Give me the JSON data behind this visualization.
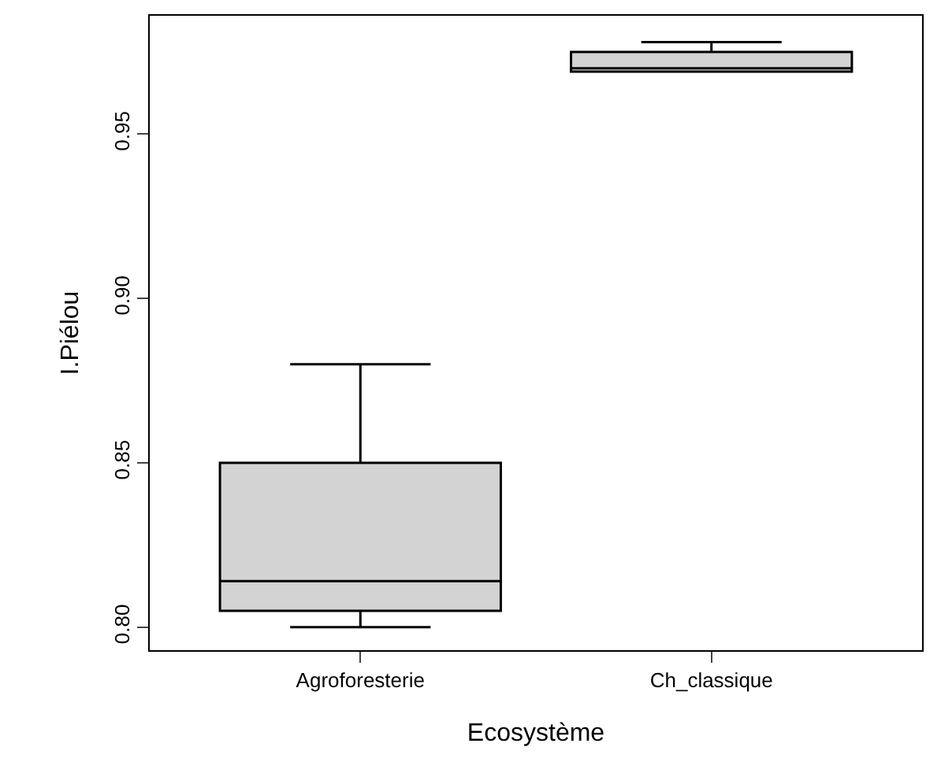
{
  "chart_data": {
    "type": "box",
    "xlabel": "Ecosystème",
    "ylabel": "I.Piélou",
    "categories": [
      "Agroforesterie",
      "Ch_classique"
    ],
    "boxes": [
      {
        "low": 0.8,
        "q1": 0.805,
        "median": 0.814,
        "q3": 0.85,
        "high": 0.88
      },
      {
        "low": 0.969,
        "q1": 0.969,
        "median": 0.97,
        "q3": 0.975,
        "high": 0.978
      }
    ],
    "color": "#d3d3d3",
    "ylim": [
      0.793,
      0.986
    ],
    "yticks": [
      {
        "value": 0.8,
        "label": "0.80"
      },
      {
        "value": 0.85,
        "label": "0.85"
      },
      {
        "value": 0.9,
        "label": "0.90"
      },
      {
        "value": 0.95,
        "label": "0.95"
      }
    ],
    "grid": false
  }
}
